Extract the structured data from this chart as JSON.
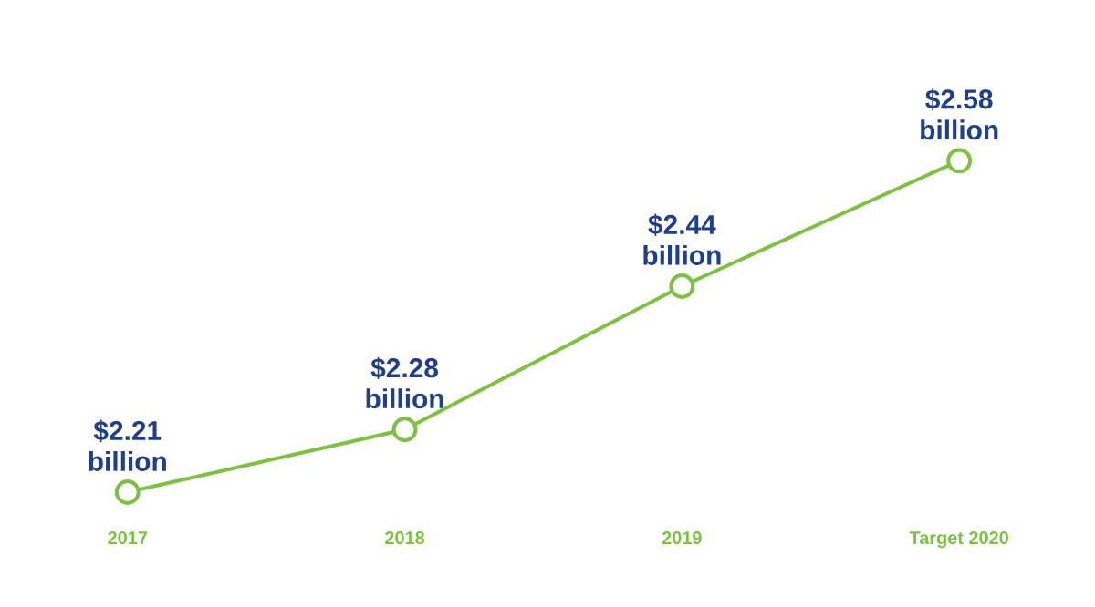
{
  "chart_data": {
    "type": "line",
    "categories": [
      "2017",
      "2018",
      "2019",
      "Target 2020"
    ],
    "values": [
      2.21,
      2.28,
      2.44,
      2.58
    ],
    "value_labels": [
      "$2.21 billion",
      "$2.28 billion",
      "$2.44 billion",
      "$2.58 billion"
    ],
    "color": "#7dc142",
    "marker": "circle"
  }
}
